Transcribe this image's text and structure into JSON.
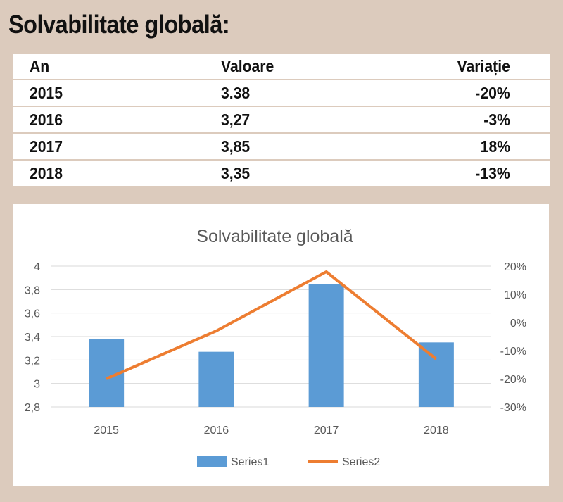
{
  "heading": "Solvabilitate globală:",
  "table": {
    "headers": [
      "An",
      "Valoare",
      "Variație"
    ],
    "rows": [
      [
        "2015",
        "3.38",
        "-20%"
      ],
      [
        "2016",
        "3,27",
        "-3%"
      ],
      [
        "2017",
        "3,85",
        "18%"
      ],
      [
        "2018",
        "3,35",
        "-13%"
      ]
    ]
  },
  "chart_data": {
    "type": "bar",
    "title": "Solvabilitate globală",
    "categories": [
      "2015",
      "2016",
      "2017",
      "2018"
    ],
    "series": [
      {
        "name": "Series1",
        "type": "bar",
        "axis": "left",
        "color": "#5b9bd5",
        "values": [
          3.38,
          3.27,
          3.85,
          3.35
        ]
      },
      {
        "name": "Series2",
        "type": "line",
        "axis": "right",
        "color": "#ed7d31",
        "values": [
          -20,
          -3,
          18,
          -13
        ]
      }
    ],
    "y_left": {
      "ylim": [
        2.8,
        4
      ],
      "ticks": [
        "2,8",
        "3",
        "3,2",
        "3,4",
        "3,6",
        "3,8",
        "4"
      ]
    },
    "y_right": {
      "ylim": [
        -30,
        20
      ],
      "ticks": [
        "-30%",
        "-20%",
        "-10%",
        "0%",
        "10%",
        "20%"
      ]
    },
    "grid": true,
    "legend": "bottom"
  }
}
